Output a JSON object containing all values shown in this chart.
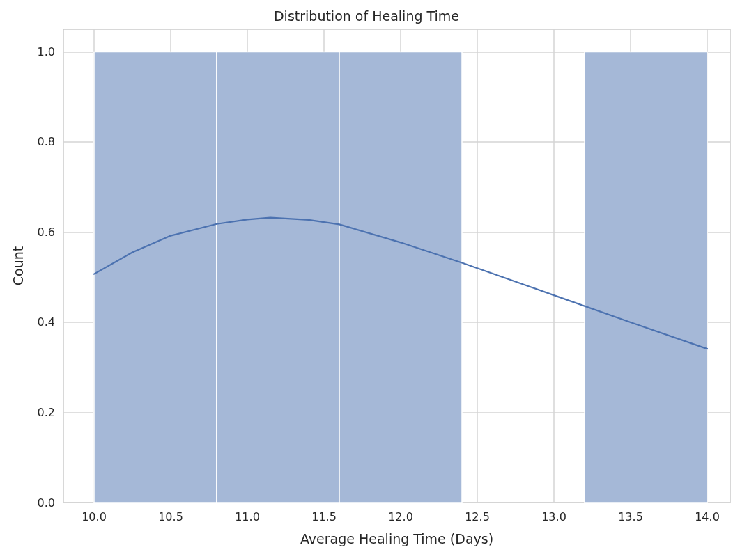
{
  "chart_data": {
    "type": "histogram",
    "title": "Distribution of Healing Time",
    "xlabel": "Average Healing Time (Days)",
    "ylabel": "Count",
    "bins": [
      10.0,
      10.8,
      11.6,
      12.4,
      13.2,
      14.0
    ],
    "values": [
      1,
      1,
      1,
      0,
      1
    ],
    "color": "#a5b8d7",
    "series": [
      {
        "type": "line",
        "color": "#4c72b0",
        "x": [
          10.0,
          10.25,
          10.5,
          10.8,
          11.0,
          11.15,
          11.4,
          11.6,
          12.0,
          12.4,
          12.7,
          13.0,
          13.5,
          14.0
        ],
        "values": [
          0.507,
          0.555,
          0.592,
          0.618,
          0.628,
          0.632,
          0.627,
          0.617,
          0.577,
          0.532,
          0.496,
          0.46,
          0.4,
          0.341
        ]
      }
    ],
    "xlim": [
      9.8,
      14.15
    ],
    "xticks": [
      {
        "value": 10,
        "label": "10.0"
      },
      {
        "value": 10.5,
        "label": "10.5"
      },
      {
        "value": 11,
        "label": "11.0"
      },
      {
        "value": 11.5,
        "label": "11.5"
      },
      {
        "value": 12,
        "label": "12.0"
      },
      {
        "value": 12.5,
        "label": "12.5"
      },
      {
        "value": 13,
        "label": "13.0"
      },
      {
        "value": 13.5,
        "label": "13.5"
      },
      {
        "value": 14,
        "label": "14.0"
      }
    ],
    "ylim": [
      0,
      1.05
    ],
    "yticks": [
      {
        "value": 0,
        "label": "0.0"
      },
      {
        "value": 0.2,
        "label": "0.2"
      },
      {
        "value": 0.4,
        "label": "0.4"
      },
      {
        "value": 0.6,
        "label": "0.6"
      },
      {
        "value": 0.8,
        "label": "0.8"
      },
      {
        "value": 1,
        "label": "1.0"
      }
    ],
    "grid": true,
    "marker": "none",
    "line_style": "solid"
  }
}
